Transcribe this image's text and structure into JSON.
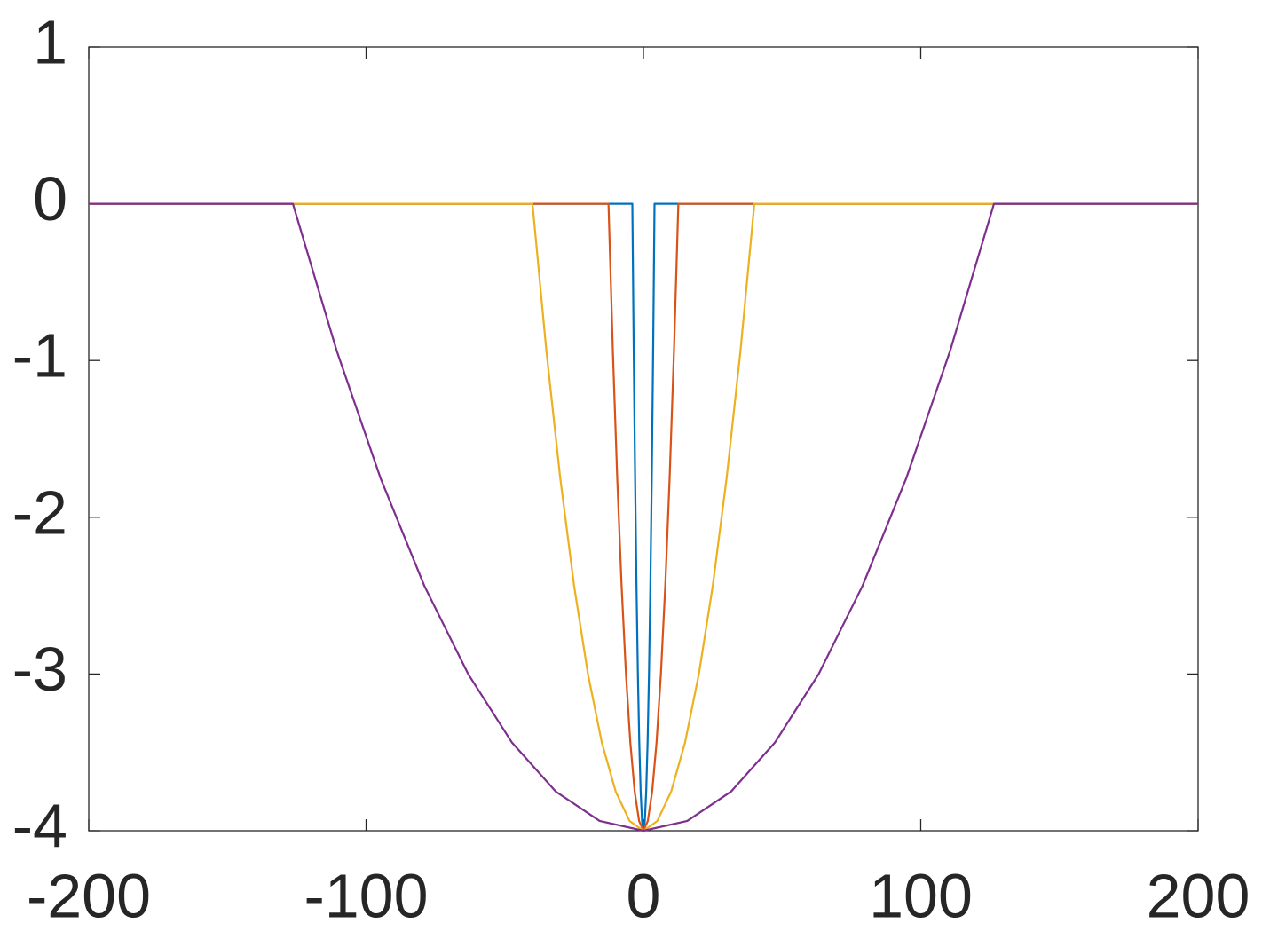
{
  "chart_data": {
    "type": "line",
    "xlim": [
      -200,
      200
    ],
    "ylim": [
      -4,
      1
    ],
    "xticks": [
      -200,
      -100,
      0,
      100,
      200
    ],
    "yticks": [
      -4,
      -3,
      -2,
      -1,
      0,
      1
    ],
    "grid": false,
    "series": [
      {
        "color": "#0072bd",
        "x": [
          -200,
          -4,
          -3.5,
          -3,
          -2.5,
          -2,
          -1.5,
          -1,
          -0.5,
          0,
          0.5,
          1,
          1.5,
          2,
          2.5,
          3,
          3.5,
          4,
          200
        ],
        "values": [
          0,
          0,
          -0.9375,
          -1.75,
          -2.4375,
          -3,
          -3.4375,
          -3.75,
          -3.9375,
          -4,
          -3.9375,
          -3.75,
          -3.4375,
          -3,
          -2.4375,
          -1.75,
          -0.9375,
          0,
          0
        ]
      },
      {
        "color": "#d95319",
        "x": [
          -200,
          -12.6,
          -11.025,
          -9.45,
          -7.875,
          -6.3,
          -4.725,
          -3.15,
          -1.575,
          0,
          1.575,
          3.15,
          4.725,
          6.3,
          7.875,
          9.45,
          11.025,
          12.6,
          200
        ],
        "values": [
          0,
          0,
          -0.9375,
          -1.75,
          -2.4375,
          -3,
          -3.4375,
          -3.75,
          -3.9375,
          -4,
          -3.9375,
          -3.75,
          -3.4375,
          -3,
          -2.4375,
          -1.75,
          -0.9375,
          0,
          0
        ]
      },
      {
        "color": "#edb120",
        "x": [
          -200,
          -40,
          -35,
          -30,
          -25,
          -20,
          -15,
          -10,
          -5,
          0,
          5,
          10,
          15,
          20,
          25,
          30,
          35,
          40,
          200
        ],
        "values": [
          0,
          0,
          -0.9375,
          -1.75,
          -2.4375,
          -3,
          -3.4375,
          -3.75,
          -3.9375,
          -4,
          -3.9375,
          -3.75,
          -3.4375,
          -3,
          -2.4375,
          -1.75,
          -0.9375,
          0,
          0
        ]
      },
      {
        "color": "#7e2f8e",
        "x": [
          -200,
          -126.4,
          -110.6,
          -94.8,
          -79,
          -63.2,
          -47.4,
          -31.6,
          -15.8,
          0,
          15.8,
          31.6,
          47.4,
          63.2,
          79,
          94.8,
          110.6,
          126.4,
          200
        ],
        "values": [
          0,
          0,
          -0.9375,
          -1.75,
          -2.4375,
          -3,
          -3.4375,
          -3.75,
          -3.9375,
          -4,
          -3.9375,
          -3.75,
          -3.4375,
          -3,
          -2.4375,
          -1.75,
          -0.9375,
          0,
          0
        ]
      }
    ]
  }
}
